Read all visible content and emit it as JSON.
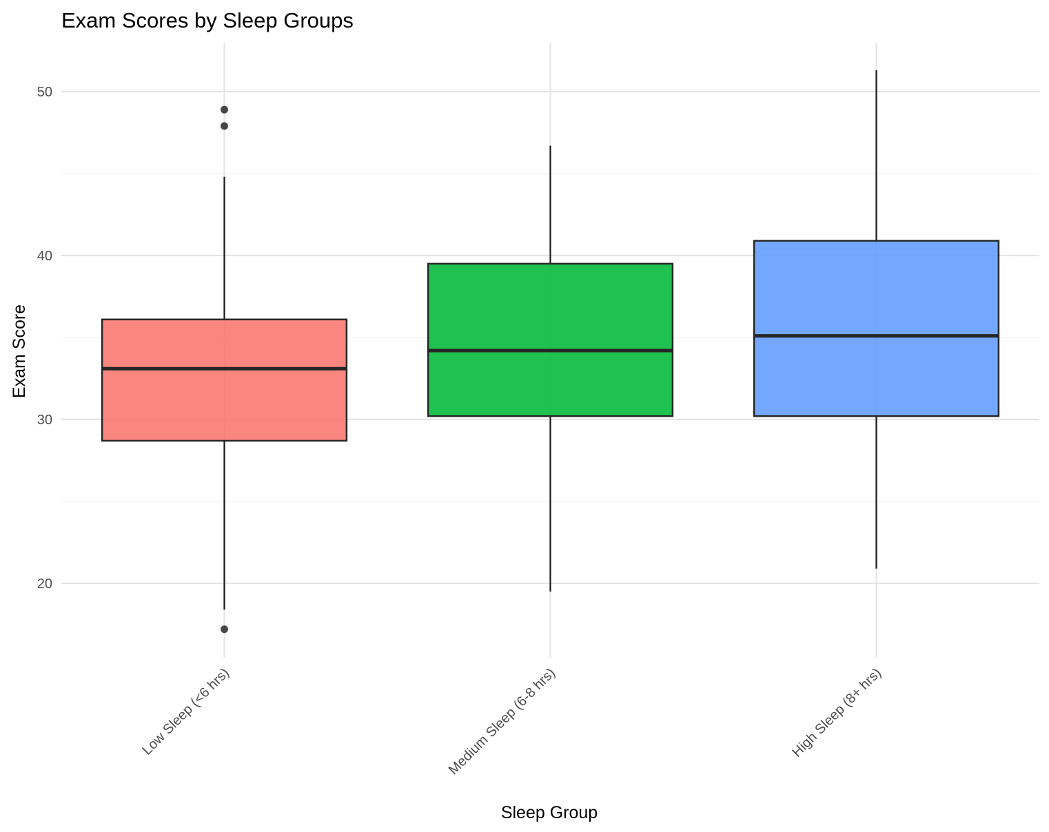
{
  "chart_data": {
    "type": "box",
    "title": "Exam Scores by Sleep Groups",
    "xlabel": "Sleep Group",
    "ylabel": "Exam Score",
    "ylim": [
      15,
      53
    ],
    "yticks": [
      20,
      30,
      40,
      50
    ],
    "grid": true,
    "legend": "none",
    "categories": [
      "Low Sleep (<6 hrs)",
      "Medium Sleep (6-8 hrs)",
      "High Sleep (8+ hrs)"
    ],
    "boxes": [
      {
        "category": "Low Sleep (<6 hrs)",
        "whisker_low": 18.4,
        "q1": 28.7,
        "median": 33.1,
        "q3": 36.1,
        "whisker_high": 44.8,
        "outliers": [
          17.2,
          47.9,
          48.9
        ],
        "color": "#F8766D"
      },
      {
        "category": "Medium Sleep (6-8 hrs)",
        "whisker_low": 19.5,
        "q1": 30.2,
        "median": 34.2,
        "q3": 39.5,
        "whisker_high": 46.7,
        "outliers": [],
        "color": "#00BA38"
      },
      {
        "category": "High Sleep (8+ hrs)",
        "whisker_low": 20.9,
        "q1": 30.2,
        "median": 35.1,
        "q3": 40.9,
        "whisker_high": 51.3,
        "outliers": [],
        "color": "#619CFF"
      }
    ]
  }
}
